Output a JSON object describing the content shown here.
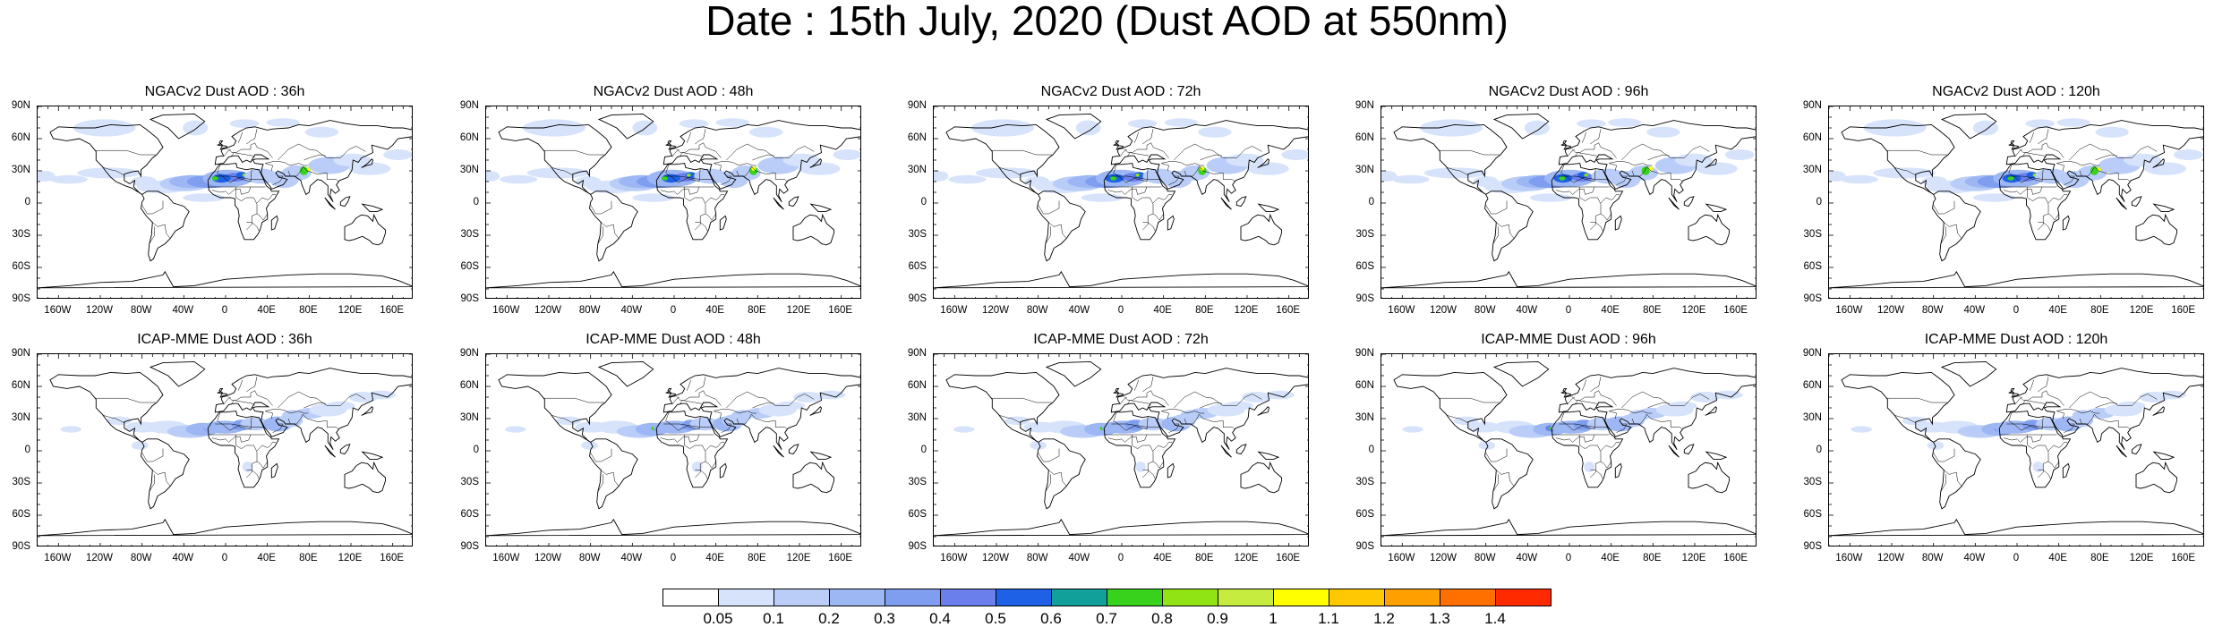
{
  "title": "Date : 15th July, 2020 (Dust AOD at 550nm)",
  "panels": [
    {
      "title": "NGACv2 Dust AOD : 36h",
      "model": "NGACv2",
      "lead": "36h"
    },
    {
      "title": "NGACv2 Dust AOD : 48h",
      "model": "NGACv2",
      "lead": "48h"
    },
    {
      "title": "NGACv2 Dust AOD : 72h",
      "model": "NGACv2",
      "lead": "72h"
    },
    {
      "title": "NGACv2 Dust AOD : 96h",
      "model": "NGACv2",
      "lead": "96h"
    },
    {
      "title": "NGACv2 Dust AOD : 120h",
      "model": "NGACv2",
      "lead": "120h"
    },
    {
      "title": "ICAP-MME Dust AOD : 36h",
      "model": "ICAP-MME",
      "lead": "36h"
    },
    {
      "title": "ICAP-MME Dust AOD : 48h",
      "model": "ICAP-MME",
      "lead": "48h"
    },
    {
      "title": "ICAP-MME Dust AOD : 72h",
      "model": "ICAP-MME",
      "lead": "72h"
    },
    {
      "title": "ICAP-MME Dust AOD : 96h",
      "model": "ICAP-MME",
      "lead": "96h"
    },
    {
      "title": "ICAP-MME Dust AOD : 120h",
      "model": "ICAP-MME",
      "lead": "120h"
    }
  ],
  "lat_labels": [
    "90N",
    "60N",
    "30N",
    "0",
    "30S",
    "60S",
    "90S"
  ],
  "lon_labels": [
    "160W",
    "120W",
    "80W",
    "40W",
    "0",
    "40E",
    "80E",
    "120E",
    "160E"
  ],
  "colorbar": {
    "labels": [
      "0.05",
      "0.1",
      "0.2",
      "0.3",
      "0.4",
      "0.5",
      "0.6",
      "0.7",
      "0.8",
      "0.9",
      "1",
      "1.1",
      "1.2",
      "1.3",
      "1.4"
    ],
    "colors": [
      "#ffffff",
      "#d7e3fb",
      "#b9cdf8",
      "#9db7f4",
      "#809ef0",
      "#6a7fec",
      "#1e61e6",
      "#12a09a",
      "#38d21c",
      "#90e414",
      "#c7ec40",
      "#ffff00",
      "#ffc800",
      "#ffa000",
      "#ff7000",
      "#ff2a00"
    ]
  }
}
